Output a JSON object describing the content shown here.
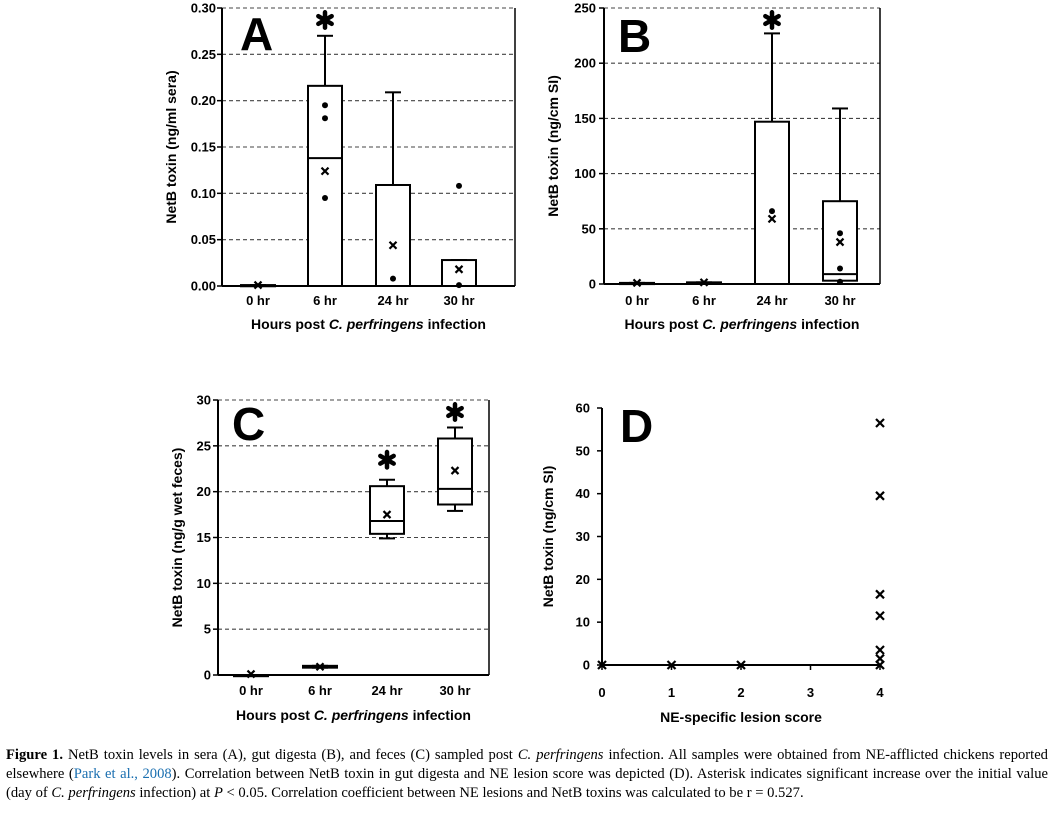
{
  "chart_data": [
    {
      "type": "box",
      "panel": "A",
      "ylabel": "NetB toxin (ng/ml sera)",
      "xlabel_parts": [
        "Hours post ",
        "C. perfringens",
        " infection"
      ],
      "ylim": [
        0,
        0.3
      ],
      "yticks": [
        "0.00",
        "0.05",
        "0.10",
        "0.15",
        "0.20",
        "0.25",
        "0.30"
      ],
      "ytick_values": [
        0,
        0.05,
        0.1,
        0.15,
        0.2,
        0.25,
        0.3
      ],
      "grid": "dashed horizontal",
      "categories": [
        "0 hr",
        "6 hr",
        "24 hr",
        "30 hr"
      ],
      "boxes": [
        {
          "min": 0,
          "q1": 0,
          "median": 0,
          "q3": 0.001,
          "max": 0.001,
          "mean": 0.001,
          "points": []
        },
        {
          "min": 0,
          "q1": 0,
          "median": 0.138,
          "q3": 0.216,
          "max": 0.27,
          "mean": 0.124,
          "points": [
            0.195,
            0.181,
            0.095
          ]
        },
        {
          "min": 0,
          "q1": 0,
          "median": 0,
          "q3": 0.109,
          "max": 0.209,
          "mean": 0.044,
          "points": [
            0.008
          ]
        },
        {
          "min": 0,
          "q1": 0,
          "median": 0,
          "q3": 0.028,
          "max": 0.028,
          "mean": 0.018,
          "points": [
            0.108,
            0.001
          ]
        }
      ],
      "significant": [
        "6 hr"
      ]
    },
    {
      "type": "box",
      "panel": "B",
      "ylabel": "NetB toxin (ng/cm SI)",
      "xlabel_parts": [
        "Hours post ",
        "C. perfringens",
        " infection"
      ],
      "ylim": [
        0,
        250
      ],
      "yticks": [
        "0",
        "50",
        "100",
        "150",
        "200",
        "250"
      ],
      "ytick_values": [
        0,
        50,
        100,
        150,
        200,
        250
      ],
      "grid": "dashed horizontal",
      "categories": [
        "0 hr",
        "6 hr",
        "24 hr",
        "30 hr"
      ],
      "boxes": [
        {
          "min": 0,
          "q1": 0,
          "median": 0,
          "q3": 1,
          "max": 1,
          "mean": 1,
          "points": []
        },
        {
          "min": 0,
          "q1": 0,
          "median": 0,
          "q3": 1.5,
          "max": 1.5,
          "mean": 1.5,
          "points": []
        },
        {
          "min": 0,
          "q1": 0,
          "median": 0,
          "q3": 147,
          "max": 227,
          "mean": 59,
          "points": [
            66
          ]
        },
        {
          "min": 0,
          "q1": 3,
          "median": 9,
          "q3": 75,
          "max": 159,
          "mean": 38,
          "points": [
            46,
            14,
            2
          ]
        }
      ],
      "significant": [
        "24 hr"
      ]
    },
    {
      "type": "box",
      "panel": "C",
      "ylabel": "NetB toxin (ng/g wet feces)",
      "xlabel_parts": [
        "Hours post ",
        "C. perfringens",
        " infection"
      ],
      "ylim": [
        0,
        30
      ],
      "yticks": [
        "0",
        "5",
        "10",
        "15",
        "20",
        "25",
        "30"
      ],
      "ytick_values": [
        0,
        5,
        10,
        15,
        20,
        25,
        30
      ],
      "grid": "dashed horizontal",
      "categories": [
        "0 hr",
        "6 hr",
        "24 hr",
        "30 hr"
      ],
      "boxes": [
        {
          "min": 0,
          "q1": 0,
          "median": 0,
          "q3": 0,
          "max": 0,
          "mean": 0.1,
          "points": []
        },
        {
          "min": 0.8,
          "q1": 0.8,
          "median": 0.9,
          "q3": 1.0,
          "max": 1.0,
          "mean": 0.9,
          "points": []
        },
        {
          "min": 14.9,
          "q1": 15.4,
          "median": 16.8,
          "q3": 20.6,
          "max": 21.3,
          "mean": 17.5,
          "points": []
        },
        {
          "min": 17.9,
          "q1": 18.6,
          "median": 20.3,
          "q3": 25.8,
          "max": 27.0,
          "mean": 22.3,
          "points": []
        }
      ],
      "significant": [
        "24 hr",
        "30 hr"
      ]
    },
    {
      "type": "scatter",
      "panel": "D",
      "ylabel": "NetB toxin (ng/cm SI)",
      "xlabel": "NE-specific lesion score",
      "xlim": [
        0,
        4
      ],
      "ylim": [
        0,
        60
      ],
      "xticks": [
        "0",
        "1",
        "2",
        "3",
        "4"
      ],
      "yticks": [
        "0",
        "10",
        "20",
        "30",
        "40",
        "50",
        "60"
      ],
      "ytick_values": [
        0,
        10,
        20,
        30,
        40,
        50,
        60
      ],
      "x": [
        0,
        1,
        2,
        4,
        4,
        4,
        4,
        4,
        4,
        4
      ],
      "y": [
        0,
        0,
        0,
        56.5,
        39.5,
        16.5,
        11.5,
        3.5,
        1.5,
        0
      ]
    }
  ],
  "caption": {
    "label": "Figure 1.",
    "t1": " NetB toxin levels in sera (A), gut digesta (B), and feces (C) sampled post ",
    "i1": "C. perfringens",
    "t2": " infection. All samples were obtained from NE-afflicted chickens reported elsewhere (",
    "ref": "Park et al., 2008",
    "t3": "). Correlation between NetB toxin in gut digesta and NE lesion score was depicted (D). Asterisk indicates significant increase over the initial value (day of ",
    "i2": "C. perfringens",
    "t4": " infection) at ",
    "i3": "P",
    "t5": " < 0.05. Correlation coefficient between NE lesions and NetB toxins was calculated to be r = 0.527."
  }
}
